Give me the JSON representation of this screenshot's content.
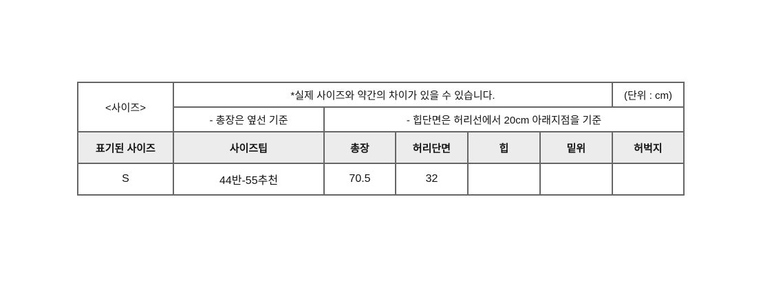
{
  "size_table": {
    "title_cell": "<사이즈>",
    "note": "*실제 사이즈와 약간의 차이가 있을 수 있습니다.",
    "unit": "(단위 : cm)",
    "note_length": "- 총장은 옆선 기준",
    "note_hip": "- 힙단면은 허리선에서 20cm 아래지점을 기준",
    "headers": [
      "표기된 사이즈",
      "사이즈팁",
      "총장",
      "허리단면",
      "힙",
      "밑위",
      "허벅지"
    ],
    "rows": [
      [
        "S",
        "44반-55추천",
        "70.5",
        "32",
        "",
        "",
        ""
      ]
    ],
    "header_bg": "#ececec"
  }
}
